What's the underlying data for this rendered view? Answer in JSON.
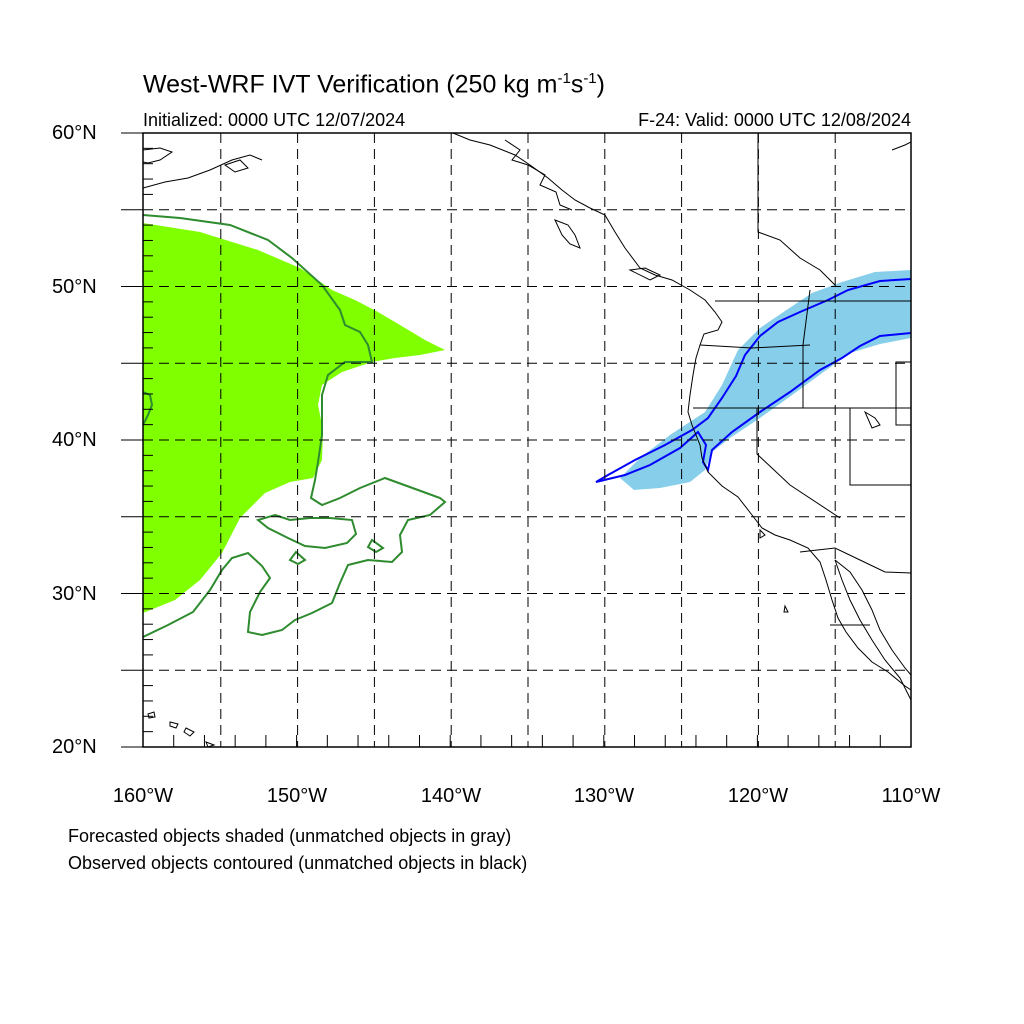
{
  "title": {
    "main": "West-WRF IVT Verification (250 kg m",
    "sup1": "-1",
    "mid": "s",
    "sup2": "-1",
    "end": ")"
  },
  "subtitle": {
    "initialized": "Initialized: 0000 UTC 12/07/2024",
    "valid": "F-24: Valid: 0000 UTC 12/08/2024"
  },
  "lat_labels": [
    "60°N",
    "50°N",
    "40°N",
    "30°N",
    "20°N"
  ],
  "lon_labels": [
    "160°W",
    "150°W",
    "140°W",
    "130°W",
    "120°W",
    "110°W"
  ],
  "notes": [
    "Forecasted objects shaded (unmatched objects in gray)",
    "Observed objects contoured (unmatched objects in black)"
  ],
  "map_extent": {
    "lon_min": -160,
    "lon_max": -110,
    "lat_min": 20,
    "lat_max": 60
  },
  "objects": [
    {
      "id": "pair-1-forecast",
      "kind": "forecast-shaded",
      "color": "#7FFF00"
    },
    {
      "id": "pair-1-observed",
      "kind": "observed-contour",
      "color": "#2E8B2E"
    },
    {
      "id": "pair-2-forecast",
      "kind": "forecast-shaded",
      "color": "#87CEEB"
    },
    {
      "id": "pair-2-observed",
      "kind": "observed-contour",
      "color": "#0000FF"
    }
  ],
  "colors": {
    "grid": "#000000",
    "coastline": "#000000"
  }
}
